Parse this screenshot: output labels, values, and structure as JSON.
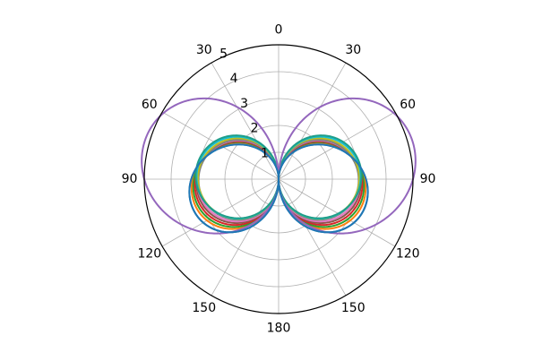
{
  "chart_data": {
    "type": "line",
    "projection": "polar",
    "theta_zero_location": "N",
    "theta_direction": "clockwise",
    "theta_range_deg": [
      0,
      180
    ],
    "theta_tick_labels": [
      "0",
      "30",
      "60",
      "90",
      "120",
      "150",
      "180",
      "150",
      "120",
      "90",
      "60",
      "30"
    ],
    "theta_ticks_deg": [
      0,
      30,
      60,
      90,
      120,
      150,
      180,
      210,
      240,
      270,
      300,
      330
    ],
    "r_ticks": [
      1,
      2,
      3,
      4,
      5
    ],
    "r_tick_labels": [
      "1",
      "2",
      "3",
      "4",
      "5"
    ],
    "rlim": [
      0,
      5
    ],
    "grid": true,
    "curve_family": "figure-eight lobes, r = a·sin(θ)·(1 + b·cos θ)",
    "series": [
      {
        "a": 3.25,
        "b": -0.3,
        "color": "#1f77b4"
      },
      {
        "a": 3.2,
        "b": -0.22,
        "color": "#ff7f0e"
      },
      {
        "a": 3.15,
        "b": -0.18,
        "color": "#2ca02c"
      },
      {
        "a": 3.1,
        "b": -0.14,
        "color": "#d62728"
      },
      {
        "a": 3.05,
        "b": -0.1,
        "color": "#8c564b"
      },
      {
        "a": 3.02,
        "b": -0.06,
        "color": "#e377c2"
      },
      {
        "a": 2.98,
        "b": -0.02,
        "color": "#7f7f7f"
      },
      {
        "a": 3.0,
        "b": 0.02,
        "color": "#bcbd22"
      },
      {
        "a": 3.05,
        "b": 0.05,
        "color": "#17becf"
      },
      {
        "a": 3.08,
        "b": 0.08,
        "color": "#1f9e89"
      },
      {
        "a": 5.0,
        "b": 0.28,
        "color": "#9467bd"
      },
      {
        "a": 3.25,
        "b": -0.3,
        "color": "#1f77b4"
      }
    ]
  }
}
